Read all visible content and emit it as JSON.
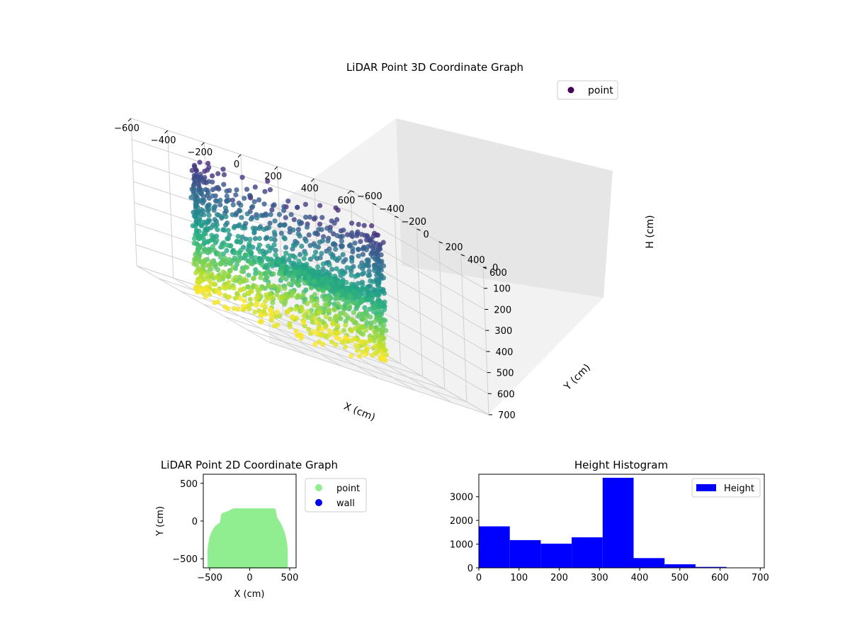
{
  "chart_data": [
    {
      "type": "scatter",
      "projection": "3d",
      "title": "LiDAR Point 3D Coordinate Graph",
      "xlabel": "X (cm)",
      "ylabel": "Y (cm)",
      "zlabel": "H (cm)",
      "xlim": [
        -600,
        600
      ],
      "ylim": [
        -600,
        600
      ],
      "zlim": [
        700,
        0
      ],
      "xticks": [
        -600,
        -400,
        -200,
        0,
        200,
        400,
        600
      ],
      "yticks": [
        -600,
        -400,
        -200,
        0,
        200,
        400,
        600
      ],
      "zticks": [
        0,
        100,
        200,
        300,
        400,
        500,
        600,
        700
      ],
      "grid": true,
      "legend": {
        "placement": "top-right",
        "entries": [
          {
            "label": "point",
            "color": "#440154"
          }
        ]
      },
      "colormap": "viridis",
      "color_by": "H (cm)",
      "shape": {
        "description": "ring of wall points",
        "x_range": [
          -500,
          450
        ],
        "y_range": [
          -600,
          150
        ],
        "h_range": [
          0,
          700
        ]
      }
    },
    {
      "type": "scatter",
      "title": "LiDAR Point 2D Coordinate Graph",
      "xlabel": "X (cm)",
      "ylabel": "Y (cm)",
      "xlim": [
        -580,
        580
      ],
      "ylim": [
        -620,
        620
      ],
      "xticks": [
        -500,
        0,
        500
      ],
      "yticks": [
        -500,
        0,
        500
      ],
      "legend": {
        "placement": "outside-right",
        "entries": [
          {
            "label": "point",
            "color": "#90ee90"
          },
          {
            "label": "wall",
            "color": "#0000ee"
          }
        ]
      },
      "shape": {
        "description": "filled footprint of points",
        "x_range": [
          -500,
          450
        ],
        "y_range": [
          -600,
          140
        ]
      }
    },
    {
      "type": "bar",
      "subtype": "histogram",
      "title": "Height Histogram",
      "xlim": [
        0,
        710
      ],
      "ylim": [
        0,
        3950
      ],
      "xticks": [
        0,
        100,
        200,
        300,
        400,
        500,
        600,
        700
      ],
      "yticks": [
        0,
        1000,
        2000,
        3000
      ],
      "bin_edges": [
        0,
        77,
        154,
        231,
        308,
        385,
        462,
        539,
        616,
        693
      ],
      "values": [
        1750,
        1170,
        1020,
        1290,
        3800,
        410,
        150,
        40,
        8
      ],
      "color": "#0000ff",
      "legend": {
        "placement": "top-right",
        "entries": [
          {
            "label": "Height",
            "color": "#0000ff"
          }
        ]
      }
    }
  ]
}
